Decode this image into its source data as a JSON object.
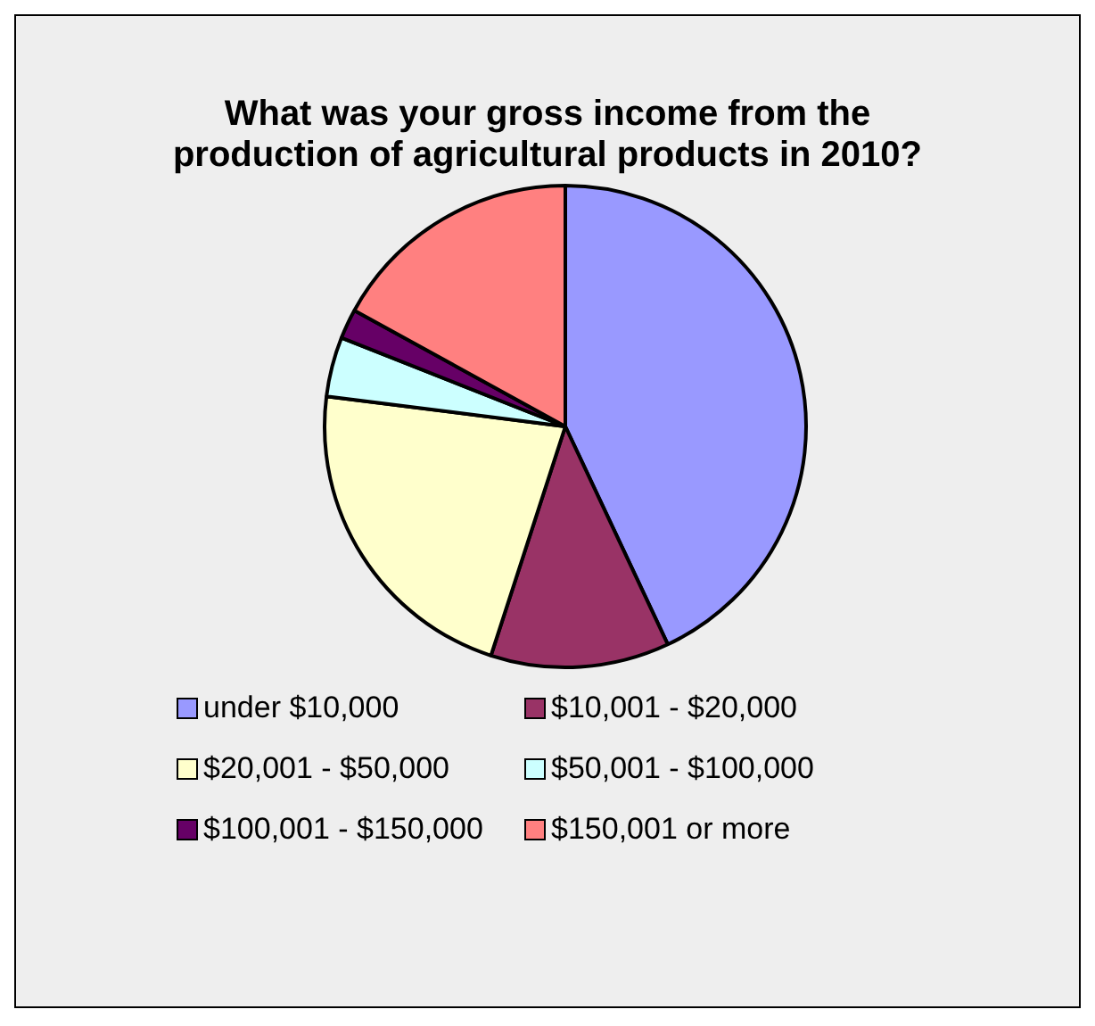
{
  "chart_data": {
    "type": "pie",
    "title": "What was your gross income from the production of agricultural products in 2010?",
    "categories": [
      "under $10,000",
      "$10,001 - $20,000",
      "$20,001 - $50,000",
      "$50,001 - $100,000",
      "$100,001 - $150,000",
      "$150,001 or more"
    ],
    "values": [
      43,
      12,
      22,
      4,
      2,
      17
    ],
    "colors": [
      "#9999ff",
      "#993366",
      "#ffffcc",
      "#ccffff",
      "#660066",
      "#ff8080"
    ],
    "legend": "bottom"
  }
}
